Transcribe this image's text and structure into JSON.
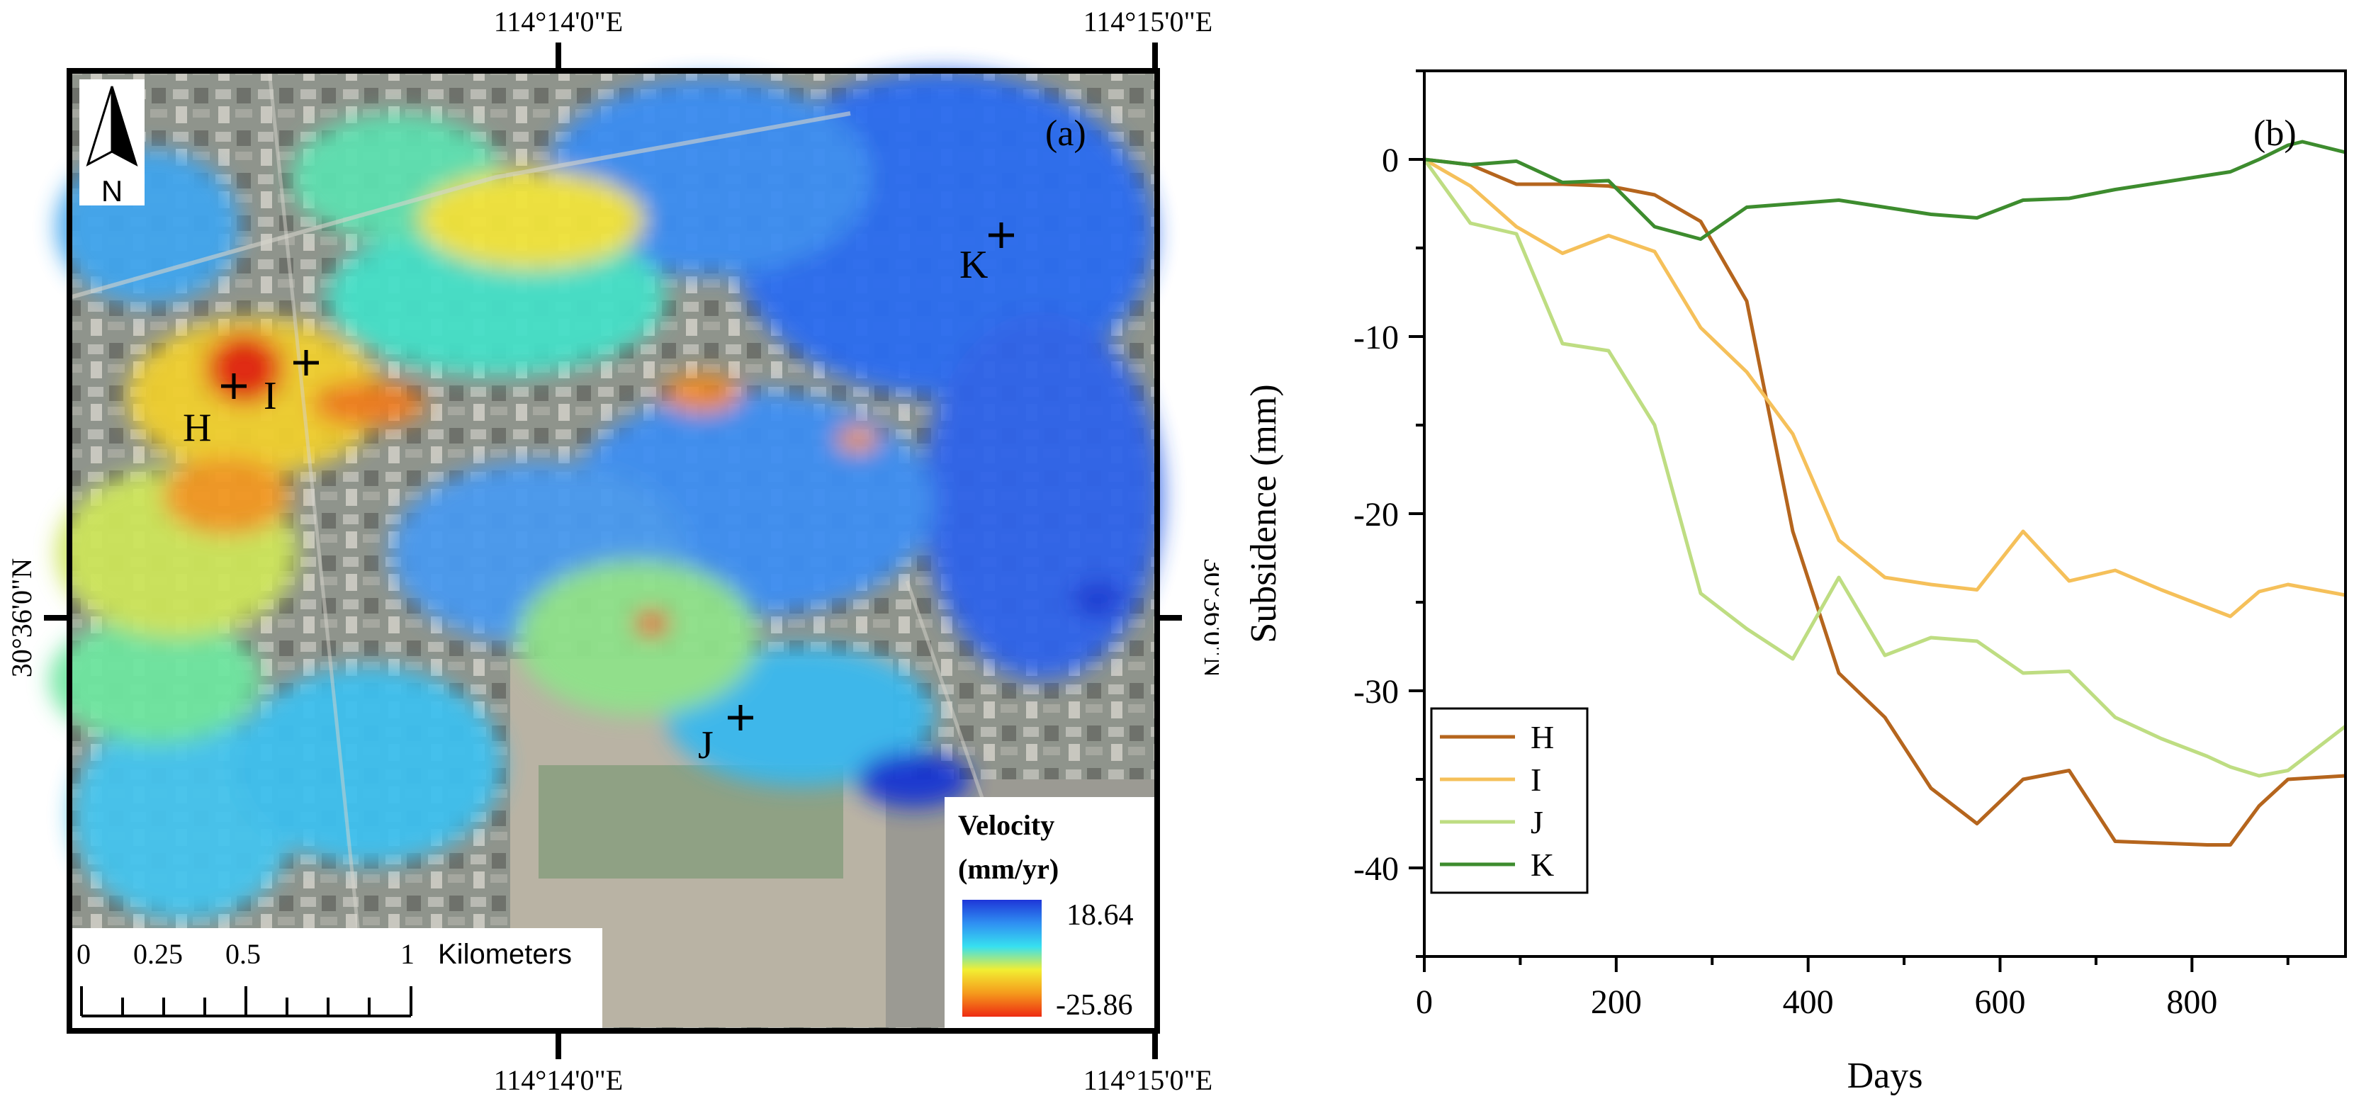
{
  "map": {
    "panel_label": "(a)",
    "north_label": "N",
    "coords": {
      "top_left": "114°14'0\"E",
      "top_right": "114°15'0\"E",
      "bottom_left": "114°14'0\"E",
      "bottom_right": "114°15'0\"E",
      "left": "30°36'0\"N",
      "right": "30°36'0\"N"
    },
    "points": [
      {
        "id": "H",
        "label": "H"
      },
      {
        "id": "I",
        "label": "I"
      },
      {
        "id": "J",
        "label": "J"
      },
      {
        "id": "K",
        "label": "K"
      }
    ],
    "legend": {
      "title_line1": "Velocity",
      "title_line2": "(mm/yr)",
      "max": "18.64",
      "min": "-25.86",
      "colors": [
        "#1e36d8",
        "#2f8ff2",
        "#37e0f0",
        "#f2ee32",
        "#f59a1c",
        "#ee2b12"
      ]
    },
    "scalebar": {
      "ticks": [
        "0",
        "0.25",
        "0.5",
        "1"
      ],
      "unit": "Kilometers"
    }
  },
  "chart_data": {
    "type": "line",
    "panel_label": "(b)",
    "xlabel": "Days",
    "ylabel": "Subsidence (mm)",
    "xlim": [
      0,
      960
    ],
    "ylim": [
      -45,
      5
    ],
    "xticks": [
      0,
      200,
      400,
      600,
      800
    ],
    "yticks": [
      0,
      -10,
      -20,
      -30,
      -40
    ],
    "xtick_labels": [
      "0",
      "200",
      "400",
      "600",
      "800"
    ],
    "ytick_labels": [
      "0",
      "-10",
      "-20",
      "-30",
      "-40"
    ],
    "legend_position": "bottom-left",
    "series": [
      {
        "name": "H",
        "color": "#b5651d",
        "x": [
          0,
          48,
          96,
          144,
          192,
          240,
          288,
          336,
          384,
          432,
          480,
          528,
          576,
          624,
          672,
          720,
          768,
          816,
          840,
          870,
          900,
          960
        ],
        "y": [
          0,
          -0.3,
          -1.4,
          -1.4,
          -1.5,
          -2.0,
          -3.5,
          -8.0,
          -21.0,
          -29.0,
          -31.5,
          -35.5,
          -37.5,
          -35.0,
          -34.5,
          -38.5,
          -38.6,
          -38.7,
          -38.7,
          -36.5,
          -35.0,
          -34.8
        ]
      },
      {
        "name": "I",
        "color": "#f5c05a",
        "x": [
          0,
          48,
          96,
          144,
          192,
          240,
          288,
          336,
          384,
          432,
          480,
          528,
          576,
          624,
          672,
          720,
          768,
          816,
          840,
          870,
          900,
          960
        ],
        "y": [
          0,
          -1.5,
          -3.8,
          -5.3,
          -4.3,
          -5.2,
          -9.5,
          -12.0,
          -15.5,
          -21.5,
          -23.6,
          -24.0,
          -24.3,
          -21.0,
          -23.8,
          -23.2,
          -24.3,
          -25.3,
          -25.8,
          -24.4,
          -24.0,
          -24.6
        ]
      },
      {
        "name": "J",
        "color": "#bedd82",
        "x": [
          0,
          48,
          96,
          144,
          192,
          240,
          288,
          336,
          384,
          432,
          480,
          528,
          576,
          624,
          672,
          720,
          768,
          816,
          840,
          870,
          900,
          960
        ],
        "y": [
          0,
          -3.6,
          -4.2,
          -10.4,
          -10.8,
          -15.0,
          -24.5,
          -26.5,
          -28.2,
          -23.6,
          -28.0,
          -27.0,
          -27.2,
          -29.0,
          -28.9,
          -31.5,
          -32.7,
          -33.7,
          -34.3,
          -34.8,
          -34.5,
          -32.0
        ]
      },
      {
        "name": "K",
        "color": "#3d8c2e",
        "x": [
          0,
          48,
          96,
          144,
          192,
          240,
          288,
          336,
          384,
          432,
          480,
          528,
          576,
          624,
          672,
          720,
          768,
          816,
          840,
          870,
          900,
          915,
          960
        ],
        "y": [
          0,
          -0.3,
          -0.1,
          -1.3,
          -1.2,
          -3.8,
          -4.5,
          -2.7,
          -2.5,
          -2.3,
          -2.7,
          -3.1,
          -3.3,
          -2.3,
          -2.2,
          -1.7,
          -1.3,
          -0.9,
          -0.7,
          0.0,
          0.8,
          1.0,
          0.4
        ]
      }
    ]
  }
}
